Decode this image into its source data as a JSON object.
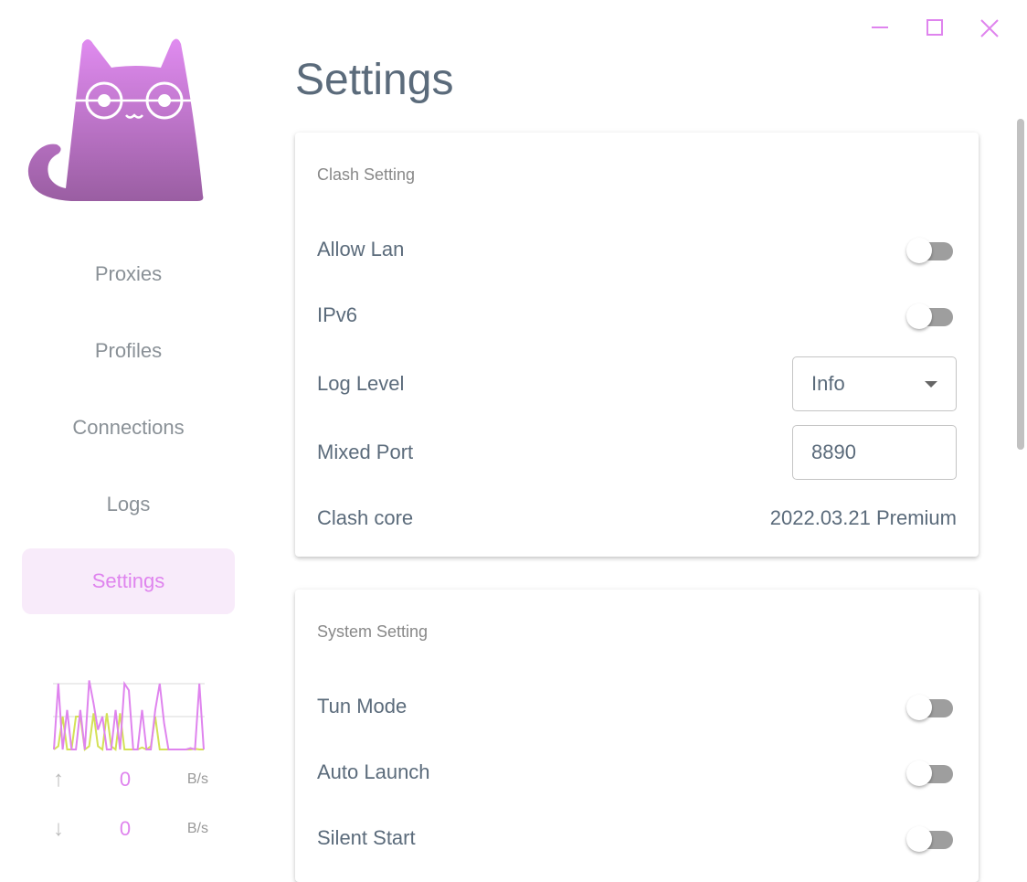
{
  "window": {
    "controls": [
      "minimize",
      "maximize",
      "close"
    ],
    "accent": "#df84ee"
  },
  "sidebar": {
    "logo": "clash-verge-cat-logo",
    "items": [
      {
        "label": "Proxies"
      },
      {
        "label": "Profiles"
      },
      {
        "label": "Connections"
      },
      {
        "label": "Logs"
      },
      {
        "label": "Settings",
        "active": true
      }
    ],
    "traffic": {
      "upload": {
        "value": "0",
        "unit": "B/s"
      },
      "download": {
        "value": "0",
        "unit": "B/s"
      },
      "graph": {
        "series_a_color": "#df84ee",
        "series_b_color": "#d4e157",
        "series_a": [
          0,
          1,
          0,
          0.6,
          0,
          0,
          0.6,
          0,
          1.05,
          0.7,
          0.3,
          0.5,
          0,
          0,
          0.6,
          0,
          1,
          0.9,
          0,
          0,
          0.6,
          0,
          0,
          0.6,
          1,
          0.4,
          0,
          0,
          0,
          0,
          0,
          0.02,
          0,
          1,
          0
        ],
        "series_b": [
          0,
          0.05,
          0.5,
          0,
          0,
          0.5,
          0.5,
          0,
          0.05,
          0.55,
          0.05,
          0,
          0.55,
          0.05,
          0,
          0.55,
          0,
          0,
          0,
          0,
          0.03,
          0,
          0.05,
          0.5,
          0,
          0,
          0,
          0,
          0,
          0,
          0,
          0,
          0.01,
          0,
          0
        ]
      }
    }
  },
  "main": {
    "title": "Settings",
    "clash": {
      "title": "Clash Setting",
      "allow_lan": {
        "label": "Allow Lan",
        "on": false
      },
      "ipv6": {
        "label": "IPv6",
        "on": false
      },
      "log_level": {
        "label": "Log Level",
        "value": "Info"
      },
      "mixed_port": {
        "label": "Mixed Port",
        "value": "8890"
      },
      "core": {
        "label": "Clash core",
        "value": "2022.03.21 Premium"
      }
    },
    "system": {
      "title": "System Setting",
      "tun": {
        "label": "Tun Mode",
        "on": false
      },
      "auto_launch": {
        "label": "Auto Launch",
        "on": false
      },
      "silent_start": {
        "label": "Silent Start",
        "on": false
      }
    }
  }
}
